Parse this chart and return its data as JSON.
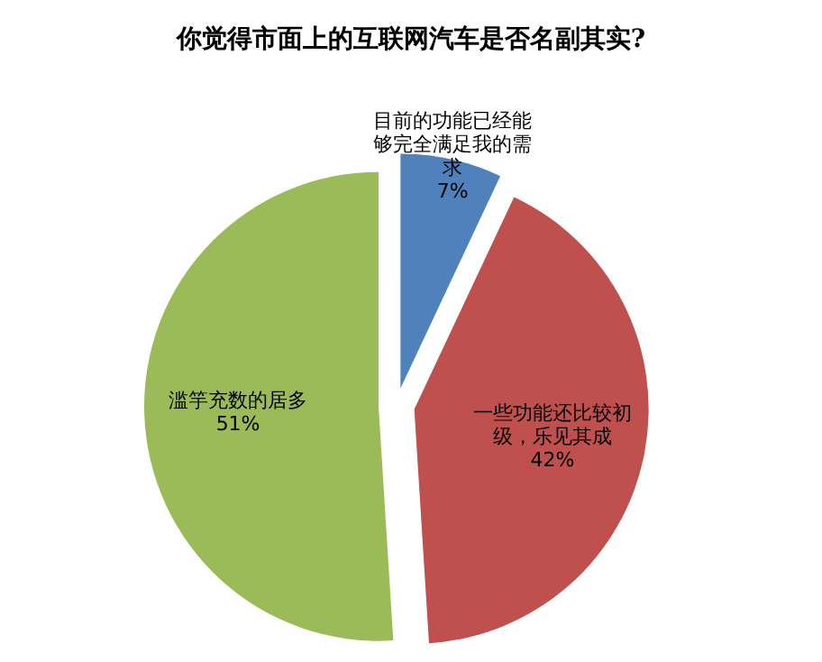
{
  "chart_data": {
    "type": "pie",
    "title": "你觉得市面上的互联网汽车是否名副其实?",
    "categories": [
      "目前的功能已经能够完全满足我的需求",
      "一些功能还比较初级，乐见其成",
      "滥竽充数的居多"
    ],
    "values": [
      7,
      42,
      51
    ],
    "value_labels": [
      "7%",
      "42%",
      "51%"
    ],
    "colors": [
      "#4f81bd",
      "#c0504d",
      "#9bbb59"
    ]
  }
}
